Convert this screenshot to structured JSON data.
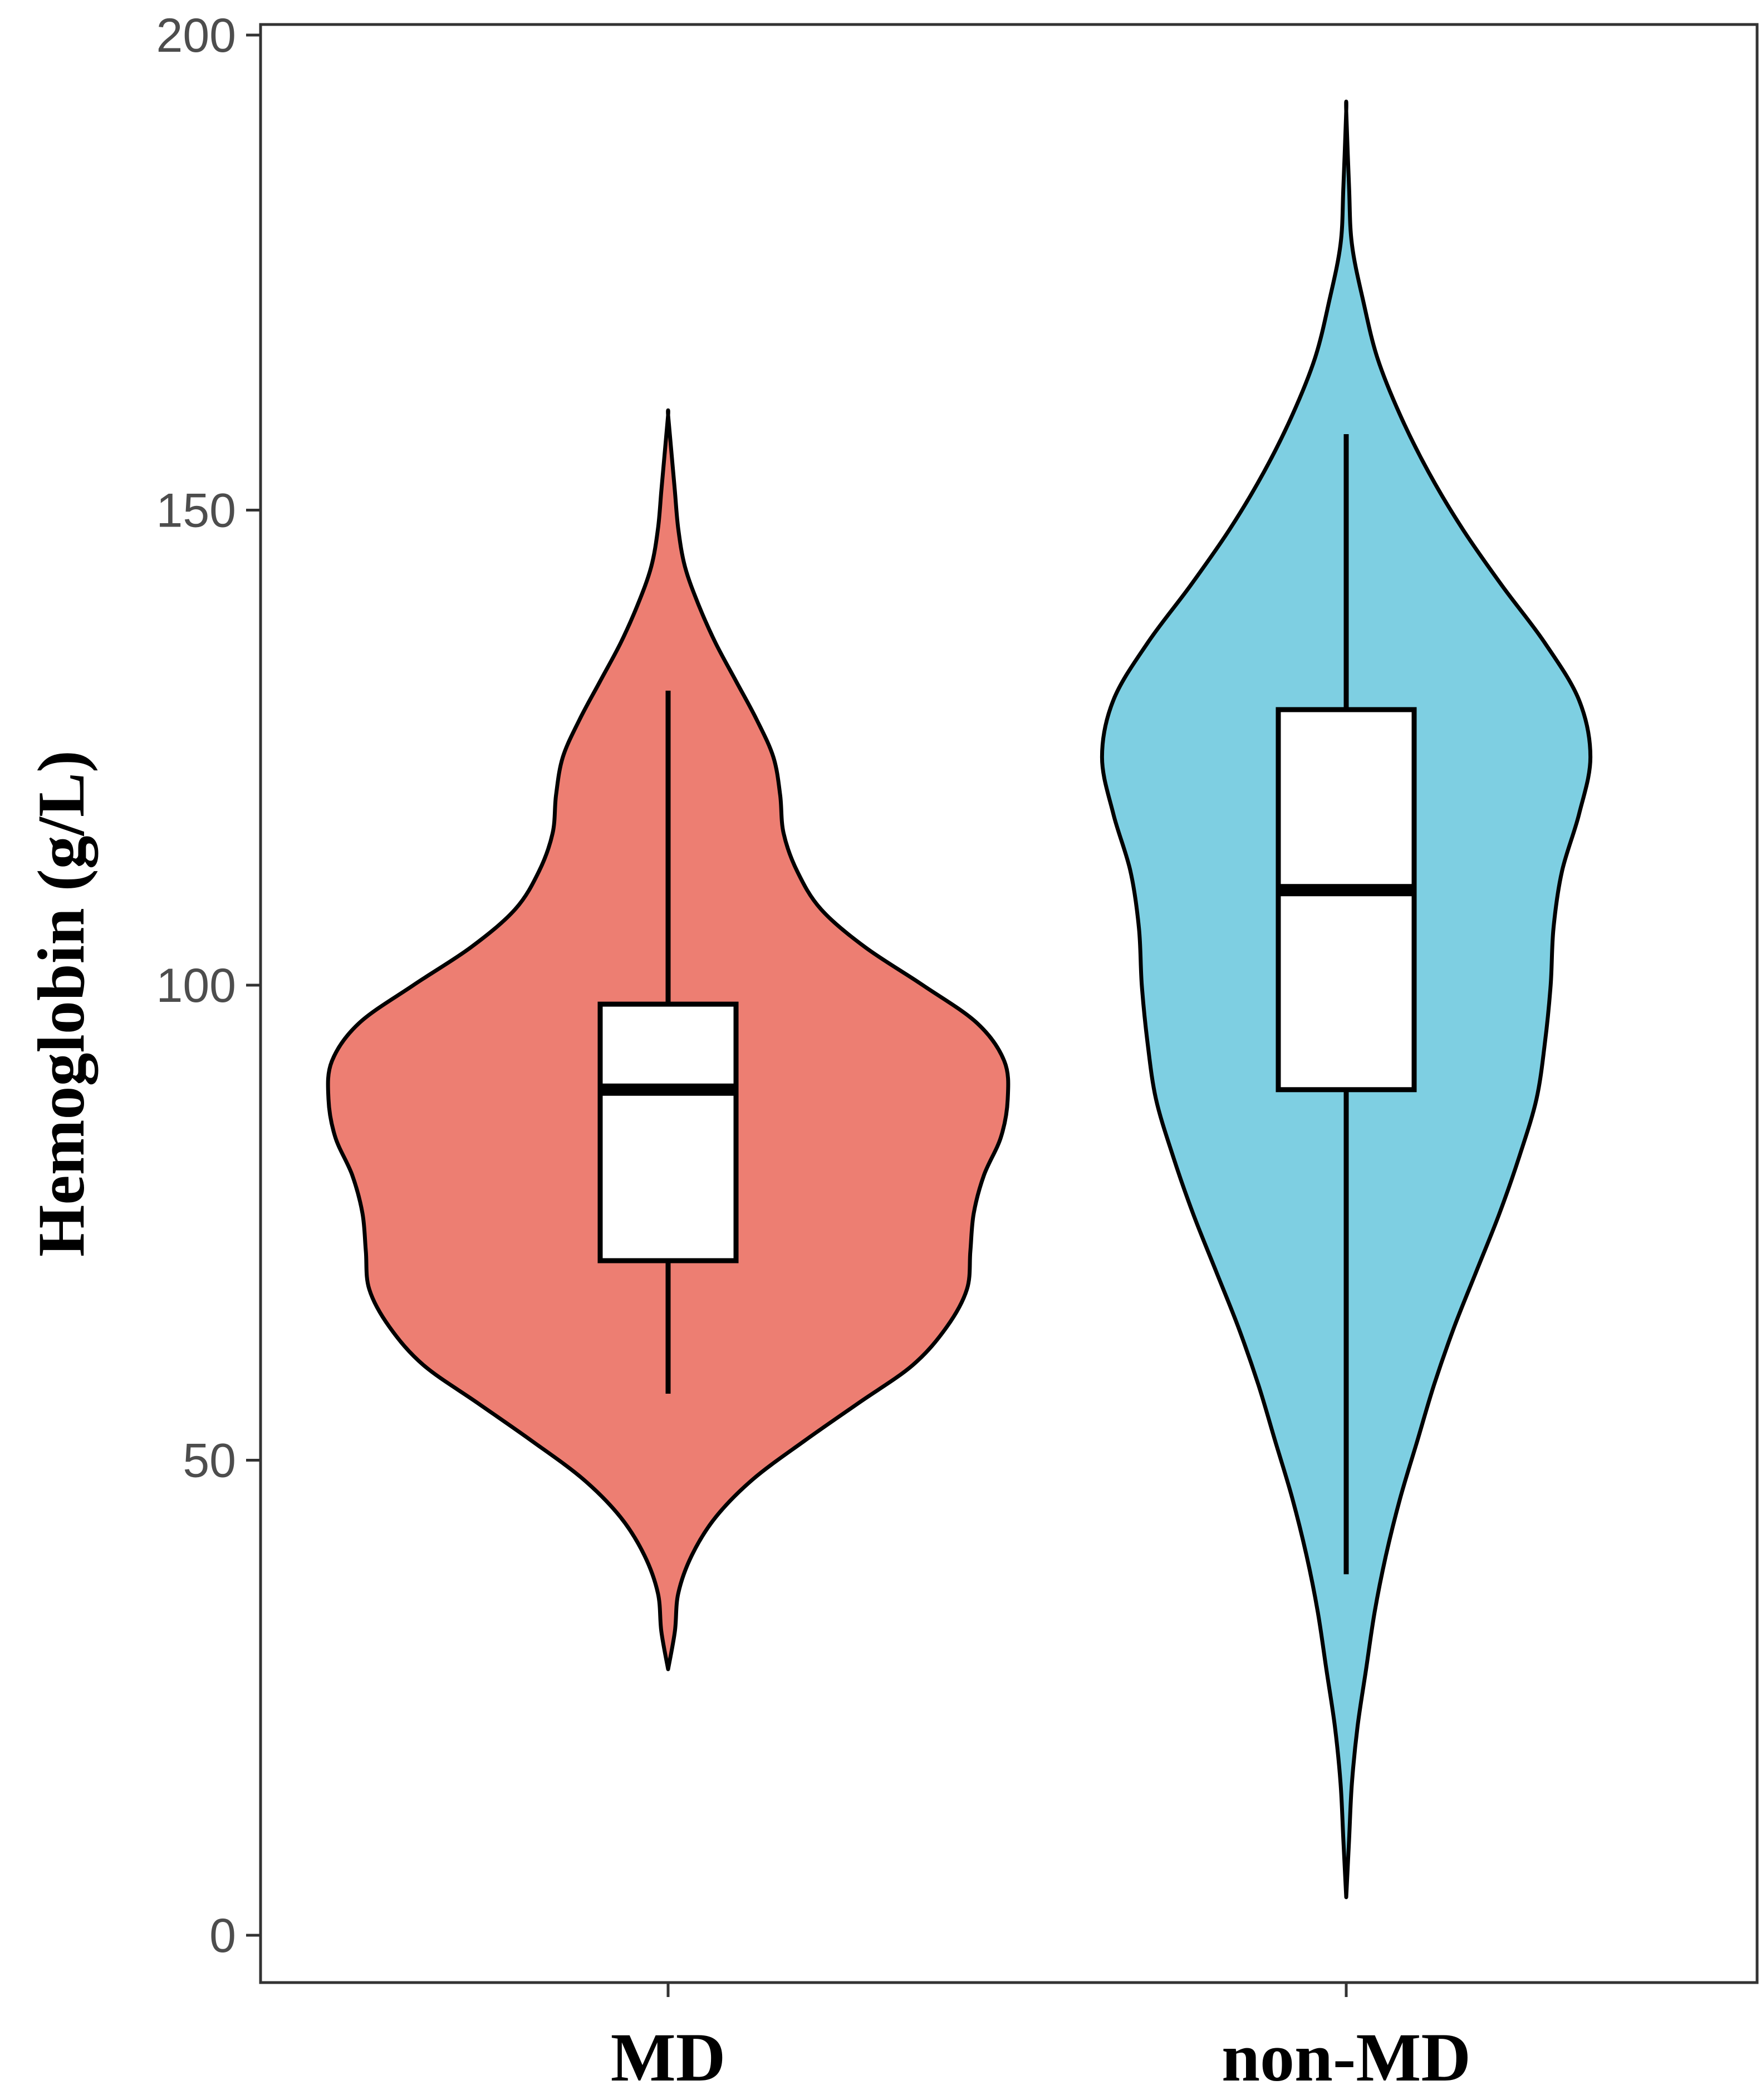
{
  "chart_data": {
    "type": "violin",
    "title": "",
    "xlabel": "",
    "ylabel": "Hemoglobin (g/L)",
    "ylim": [
      -5,
      205
    ],
    "yticks": [
      0,
      50,
      100,
      150,
      200
    ],
    "grid": false,
    "legend": "none",
    "categories": [
      "MD",
      "non-MD"
    ],
    "series": [
      {
        "category": "MD",
        "color": "#ED7E72",
        "range": [
          28,
          160
        ],
        "boxplot": {
          "whisker_low": 57,
          "q1": 71,
          "median": 89,
          "q3": 98,
          "whisker_high": 131
        },
        "density": [
          [
            28,
            0.0
          ],
          [
            32,
            0.02
          ],
          [
            36,
            0.03
          ],
          [
            40,
            0.07
          ],
          [
            44,
            0.14
          ],
          [
            48,
            0.25
          ],
          [
            52,
            0.4
          ],
          [
            56,
            0.56
          ],
          [
            60,
            0.72
          ],
          [
            64,
            0.82
          ],
          [
            68,
            0.88
          ],
          [
            72,
            0.89
          ],
          [
            76,
            0.9
          ],
          [
            80,
            0.93
          ],
          [
            84,
            0.98
          ],
          [
            88,
            1.0
          ],
          [
            92,
            0.99
          ],
          [
            96,
            0.91
          ],
          [
            100,
            0.75
          ],
          [
            104,
            0.58
          ],
          [
            108,
            0.45
          ],
          [
            112,
            0.38
          ],
          [
            116,
            0.34
          ],
          [
            120,
            0.33
          ],
          [
            124,
            0.31
          ],
          [
            128,
            0.26
          ],
          [
            132,
            0.2
          ],
          [
            136,
            0.14
          ],
          [
            140,
            0.09
          ],
          [
            144,
            0.05
          ],
          [
            148,
            0.03
          ],
          [
            152,
            0.02
          ],
          [
            156,
            0.01
          ],
          [
            160,
            0.0
          ]
        ]
      },
      {
        "category": "non-MD",
        "color": "#7ECFE2",
        "range": [
          4,
          192
        ],
        "boxplot": {
          "whisker_low": 38,
          "q1": 89,
          "median": 110,
          "q3": 129,
          "whisker_high": 158
        },
        "density": [
          [
            4,
            0.0
          ],
          [
            10,
            0.01
          ],
          [
            16,
            0.02
          ],
          [
            22,
            0.04
          ],
          [
            28,
            0.07
          ],
          [
            34,
            0.1
          ],
          [
            40,
            0.14
          ],
          [
            46,
            0.19
          ],
          [
            52,
            0.25
          ],
          [
            58,
            0.31
          ],
          [
            64,
            0.38
          ],
          [
            70,
            0.46
          ],
          [
            76,
            0.54
          ],
          [
            82,
            0.61
          ],
          [
            88,
            0.67
          ],
          [
            94,
            0.7
          ],
          [
            100,
            0.72
          ],
          [
            106,
            0.73
          ],
          [
            112,
            0.76
          ],
          [
            118,
            0.82
          ],
          [
            124,
            0.86
          ],
          [
            130,
            0.82
          ],
          [
            136,
            0.7
          ],
          [
            142,
            0.55
          ],
          [
            148,
            0.41
          ],
          [
            154,
            0.29
          ],
          [
            160,
            0.19
          ],
          [
            166,
            0.11
          ],
          [
            172,
            0.06
          ],
          [
            178,
            0.02
          ],
          [
            184,
            0.01
          ],
          [
            192,
            0.0
          ]
        ]
      }
    ]
  }
}
